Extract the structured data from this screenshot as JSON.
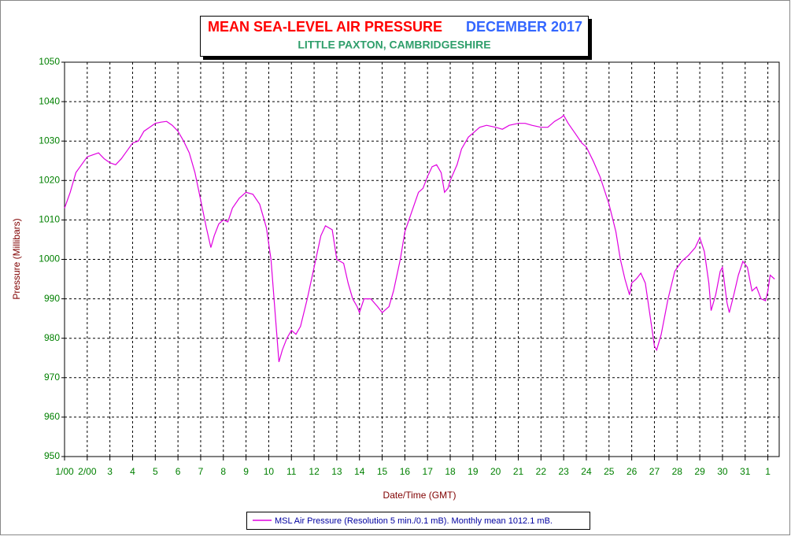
{
  "chart_data": {
    "type": "line",
    "title": "MEAN SEA-LEVEL AIR PRESSURE",
    "title_date": "DECEMBER 2017",
    "subtitle": "LITTLE PAXTON, CAMBRIDGESHIRE",
    "x_label": "Date/Time (GMT)",
    "y_label": "Pressure (Millibars)",
    "xlim": [
      1,
      32.5
    ],
    "ylim": [
      950,
      1050
    ],
    "yticks": [
      950,
      960,
      970,
      980,
      990,
      1000,
      1010,
      1020,
      1030,
      1040,
      1050
    ],
    "xticks": [
      {
        "value": 1,
        "label": "1/00"
      },
      {
        "value": 2,
        "label": "2/00"
      },
      3,
      4,
      5,
      6,
      7,
      8,
      9,
      10,
      11,
      12,
      13,
      14,
      15,
      16,
      17,
      18,
      19,
      20,
      21,
      22,
      23,
      24,
      25,
      26,
      27,
      28,
      29,
      30,
      31,
      {
        "value": 32,
        "label": "1"
      }
    ],
    "grid": true,
    "legend": "bottom",
    "series": [
      {
        "name": "MSL Air Pressure (Resolution 5 min./0.1 mB). Monthly mean 1012.1 mB.",
        "color": "#e000e0",
        "x": [
          1.0,
          1.25,
          1.5,
          1.75,
          2.0,
          2.25,
          2.5,
          2.75,
          3.0,
          3.25,
          3.5,
          3.75,
          4.0,
          4.25,
          4.5,
          4.75,
          5.0,
          5.25,
          5.5,
          5.75,
          6.0,
          6.25,
          6.5,
          6.75,
          7.0,
          7.25,
          7.45,
          7.6,
          7.8,
          8.0,
          8.2,
          8.4,
          8.7,
          9.0,
          9.3,
          9.6,
          9.9,
          10.1,
          10.3,
          10.45,
          10.6,
          10.8,
          11.0,
          11.2,
          11.4,
          11.7,
          12.0,
          12.3,
          12.5,
          12.8,
          13.0,
          13.3,
          13.5,
          13.7,
          13.9,
          14.0,
          14.2,
          14.5,
          14.8,
          15.0,
          15.3,
          15.5,
          15.8,
          16.0,
          16.3,
          16.6,
          16.8,
          17.0,
          17.2,
          17.4,
          17.6,
          17.75,
          17.9,
          18.0,
          18.3,
          18.5,
          18.8,
          19.0,
          19.3,
          19.6,
          20.0,
          20.3,
          20.6,
          21.0,
          21.3,
          21.6,
          22.0,
          22.3,
          22.6,
          22.9,
          23.0,
          23.2,
          23.5,
          23.8,
          24.0,
          24.3,
          24.6,
          25.0,
          25.3,
          25.5,
          25.7,
          25.9,
          26.0,
          26.2,
          26.4,
          26.6,
          26.8,
          27.0,
          27.1,
          27.3,
          27.6,
          27.9,
          28.2,
          28.5,
          28.8,
          29.0,
          29.2,
          29.4,
          29.5,
          29.7,
          29.9,
          30.0,
          30.2,
          30.3,
          30.5,
          30.7,
          30.9,
          31.1,
          31.3,
          31.5,
          31.7,
          31.9,
          32.0,
          32.1,
          32.3
        ],
        "values": [
          1013,
          1017,
          1022,
          1024,
          1026,
          1026.5,
          1027,
          1025.5,
          1024.5,
          1024,
          1025.5,
          1027.5,
          1029.5,
          1030,
          1032.5,
          1033.5,
          1034.5,
          1034.8,
          1035,
          1034,
          1032.5,
          1030,
          1027,
          1022,
          1015,
          1008,
          1003,
          1006,
          1009,
          1010,
          1009.5,
          1013,
          1015.5,
          1017,
          1016.5,
          1014,
          1008,
          1000,
          985,
          974,
          977,
          980,
          982,
          981,
          983,
          990,
          998,
          1006,
          1008.5,
          1007.5,
          1000,
          999,
          994,
          990,
          988,
          986.5,
          990,
          990,
          988,
          986.5,
          988,
          992,
          1000,
          1007,
          1012,
          1017,
          1018,
          1021,
          1023.5,
          1024,
          1022,
          1017,
          1018,
          1020,
          1024,
          1028,
          1031,
          1032,
          1033.5,
          1034,
          1033.5,
          1033,
          1034,
          1034.5,
          1034.5,
          1034,
          1033.5,
          1033.5,
          1035,
          1036,
          1036.5,
          1034.5,
          1032,
          1029.5,
          1028.5,
          1025,
          1021,
          1014,
          1007,
          1000,
          995,
          991,
          994,
          995,
          996.5,
          994,
          986,
          978,
          977,
          981,
          990,
          997,
          999.5,
          1001,
          1003,
          1005.5,
          1002,
          994,
          987,
          991,
          997,
          998,
          989,
          986.5,
          991,
          996,
          999.5,
          998,
          992,
          993,
          990,
          989.5,
          992,
          996,
          995
        ]
      }
    ]
  }
}
